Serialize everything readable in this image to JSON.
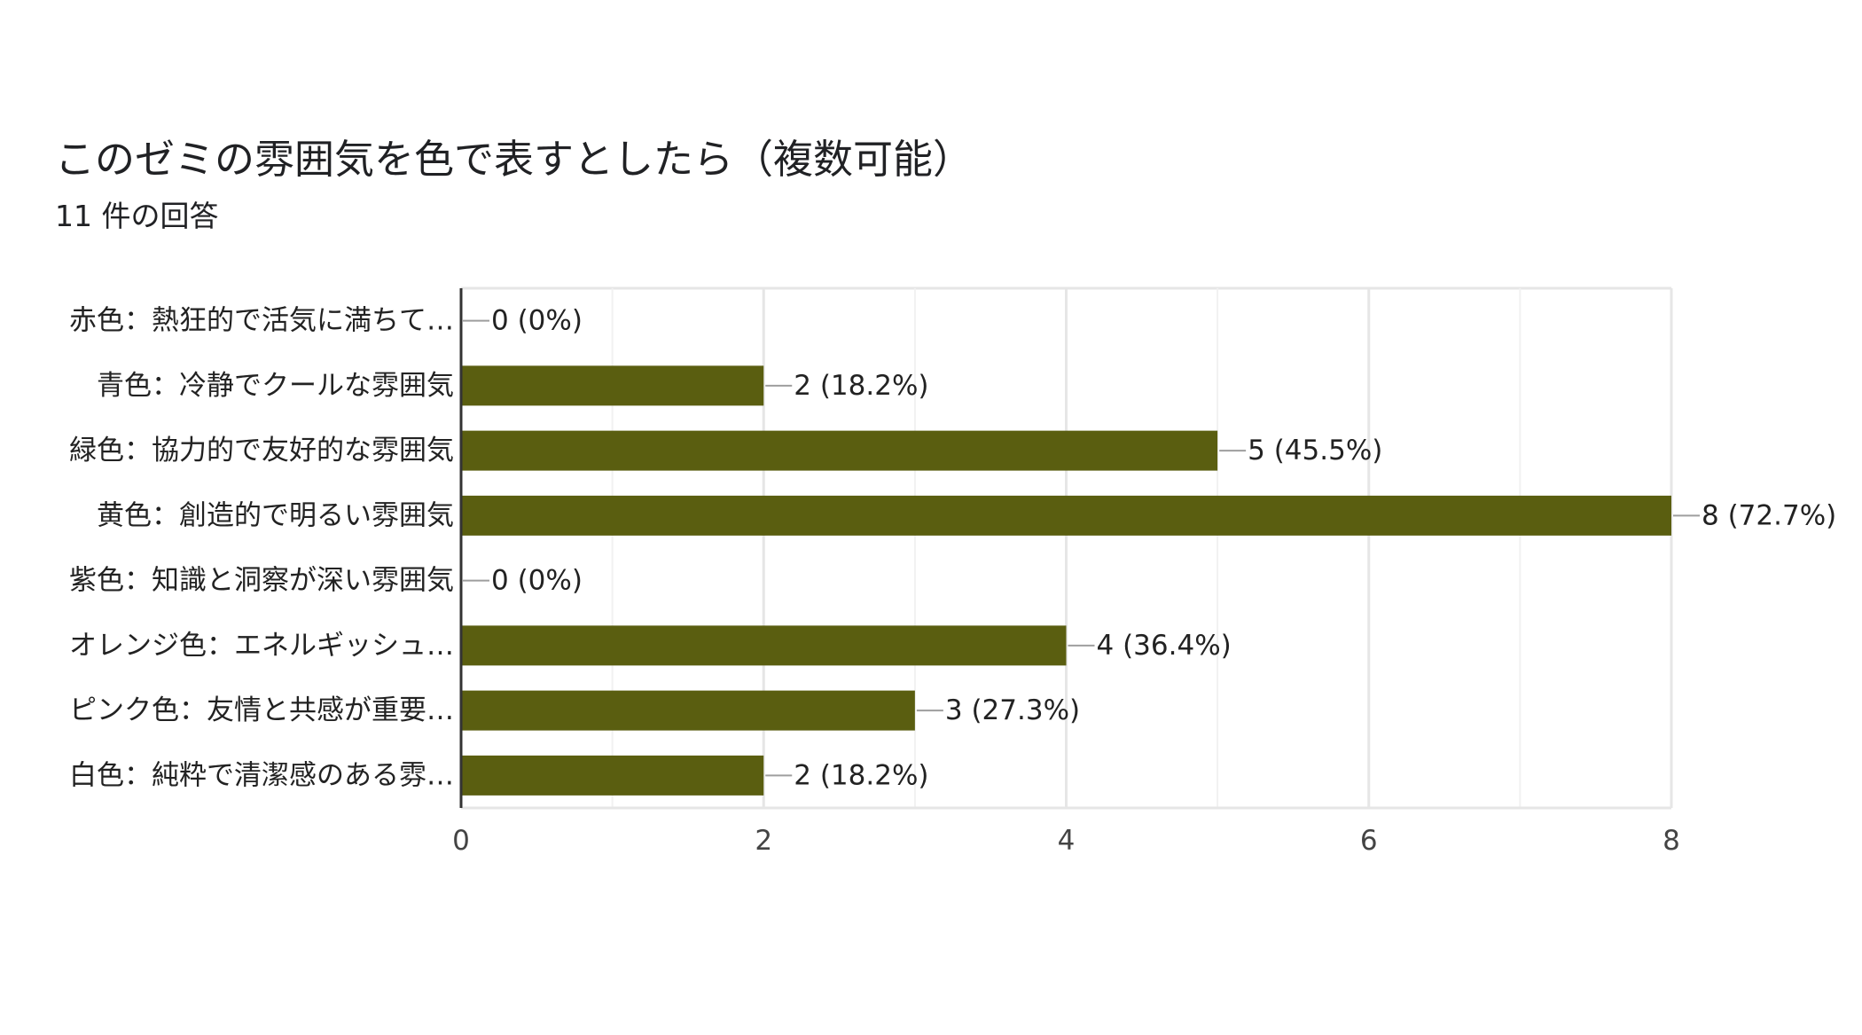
{
  "form": {
    "question_title": "このゼミの雰囲気を色で表すとしたら（複数可能）",
    "response_count": "11 件の回答"
  },
  "colors": {
    "bar": "#5a5e10",
    "grid": "#e6e6e6",
    "axis": "#333333",
    "text": "#222222",
    "tick_text": "#444444"
  },
  "chart_data": {
    "type": "bar",
    "orientation": "horizontal",
    "title": "このゼミの雰囲気を色で表すとしたら（複数可能）",
    "subtitle": "11 件の回答",
    "categories": [
      "赤色：熱狂的で活気に満ちて…",
      "青色：冷静でクールな雰囲気",
      "緑色：協力的で友好的な雰囲気",
      "黄色：創造的で明るい雰囲気",
      "紫色：知識と洞察が深い雰囲気",
      "オレンジ色：エネルギッシュ…",
      "ピンク色：友情と共感が重要…",
      "白色：純粋で清潔感のある雰…"
    ],
    "values": [
      0,
      2,
      5,
      8,
      0,
      4,
      3,
      2
    ],
    "value_labels": [
      "0 (0%)",
      "2 (18.2%)",
      "5 (45.5%)",
      "8 (72.7%)",
      "0 (0%)",
      "4 (36.4%)",
      "3 (27.3%)",
      "2 (18.2%)"
    ],
    "xlim": [
      0,
      8
    ],
    "major_ticks": [
      0,
      2,
      4,
      6,
      8
    ],
    "minor_ticks": [
      1,
      3,
      5,
      7
    ],
    "tick_labels": [
      "0",
      "2",
      "4",
      "6",
      "8"
    ],
    "grid": true,
    "legend": "none"
  }
}
